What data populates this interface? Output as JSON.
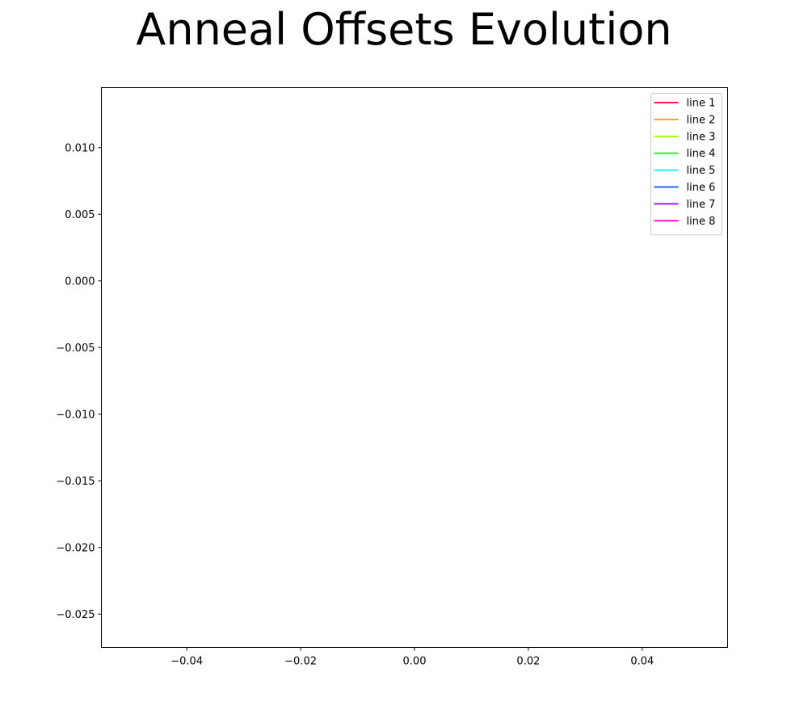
{
  "chart_data": {
    "type": "line",
    "title": "Anneal Offsets Evolution",
    "xlabel": "",
    "ylabel": "",
    "xlim": [
      -0.055,
      0.055
    ],
    "ylim": [
      -0.0275,
      0.0145
    ],
    "x_ticks": [
      -0.04,
      -0.02,
      0.0,
      0.02,
      0.04
    ],
    "x_tick_labels": [
      "−0.04",
      "−0.02",
      "0.00",
      "0.02",
      "0.04"
    ],
    "y_ticks": [
      0.01,
      0.005,
      0.0,
      -0.005,
      -0.01,
      -0.015,
      -0.02,
      -0.025
    ],
    "y_tick_labels": [
      "0.010",
      "0.005",
      "0.000",
      "−0.005",
      "−0.010",
      "−0.015",
      "−0.020",
      "−0.025"
    ],
    "grid": false,
    "legend_position": "top-right",
    "series": [
      {
        "name": "line 1",
        "color": "#ff0029",
        "x": [],
        "y": []
      },
      {
        "name": "line 2",
        "color": "#ff9b00",
        "x": [],
        "y": []
      },
      {
        "name": "line 3",
        "color": "#9bff00",
        "x": [],
        "y": []
      },
      {
        "name": "line 4",
        "color": "#00ff3a",
        "x": [],
        "y": []
      },
      {
        "name": "line 5",
        "color": "#00f0ff",
        "x": [],
        "y": []
      },
      {
        "name": "line 6",
        "color": "#0055ff",
        "x": [],
        "y": []
      },
      {
        "name": "line 7",
        "color": "#8300e8",
        "x": [],
        "y": []
      },
      {
        "name": "line 8",
        "color": "#ff00c3",
        "x": [],
        "y": []
      }
    ]
  }
}
